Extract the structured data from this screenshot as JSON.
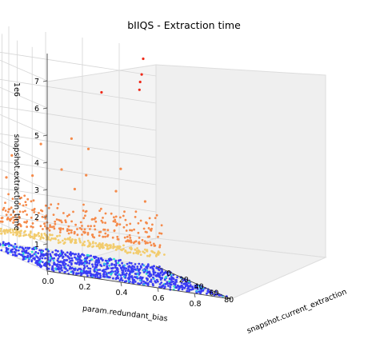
{
  "chart_data": {
    "type": "scatter",
    "projection": "3d",
    "title": "bIIQS - Extraction time",
    "xlabel": "param.redundant_bias",
    "ylabel": "snapshot.current_extraction",
    "zlabel": "snapshot.extraction_time",
    "z_multiplier": "1e6",
    "xlim": [
      0,
      1
    ],
    "ylim": [
      0,
      100
    ],
    "zlim": [
      0,
      8
    ],
    "x_ticks": [
      "0.0",
      "0.2",
      "0.4",
      "0.6",
      "0.8"
    ],
    "y_ticks": [
      "0",
      "20",
      "40",
      "60",
      "80"
    ],
    "z_ticks": [
      "1",
      "2",
      "3",
      "4",
      "5",
      "6",
      "7"
    ],
    "grid": true,
    "colormap": "rainbow",
    "colors": {
      "base_low": "#3a3cf5",
      "base_mid": "#33bbee",
      "base_high": "#2ee8c8",
      "band_yellow": "#f2cc6e",
      "band_orange": "#f58a4a",
      "outlier_red": "#ee2a1a",
      "pane": "#f4f4f4",
      "grid": "#d6d6d6"
    },
    "layers": [
      {
        "z_range": [
          0.0,
          0.05
        ],
        "y_range": [
          0,
          100
        ],
        "color_scale": "blue-cyan"
      },
      {
        "z_range": [
          0.4,
          0.6
        ],
        "y_range": [
          0,
          12
        ],
        "color_scale": "yellow"
      },
      {
        "z_range": [
          0.8,
          1.9
        ],
        "y_range": [
          0,
          12
        ],
        "color_scale": "orange"
      }
    ],
    "outliers": [
      {
        "x": 0.91,
        "y": 5,
        "z": 7.6
      },
      {
        "x": 0.91,
        "y": 3,
        "z": 7.0
      },
      {
        "x": 0.91,
        "y": 1,
        "z": 6.7
      },
      {
        "x": 0.91,
        "y": 0,
        "z": 6.4
      },
      {
        "x": 0.7,
        "y": 1,
        "z": 6.1
      },
      {
        "x": 0.5,
        "y": 10,
        "z": 4.3
      },
      {
        "x": 0.6,
        "y": 8,
        "z": 4.0
      },
      {
        "x": 0.35,
        "y": 6,
        "z": 3.9
      },
      {
        "x": 0.8,
        "y": 2,
        "z": 3.4
      },
      {
        "x": 0.2,
        "y": 4,
        "z": 3.3
      },
      {
        "x": 0.45,
        "y": 9,
        "z": 3.1
      },
      {
        "x": 0.12,
        "y": 3,
        "z": 3.2
      },
      {
        "x": 0.6,
        "y": 5,
        "z": 3.0
      },
      {
        "x": 0.3,
        "y": 7,
        "z": 2.7
      },
      {
        "x": 0.75,
        "y": 8,
        "z": 2.6
      },
      {
        "x": 0.9,
        "y": 10,
        "z": 2.4
      },
      {
        "x": 0.15,
        "y": 9,
        "z": 2.5
      },
      {
        "x": 0.55,
        "y": 2,
        "z": 2.4
      }
    ]
  }
}
